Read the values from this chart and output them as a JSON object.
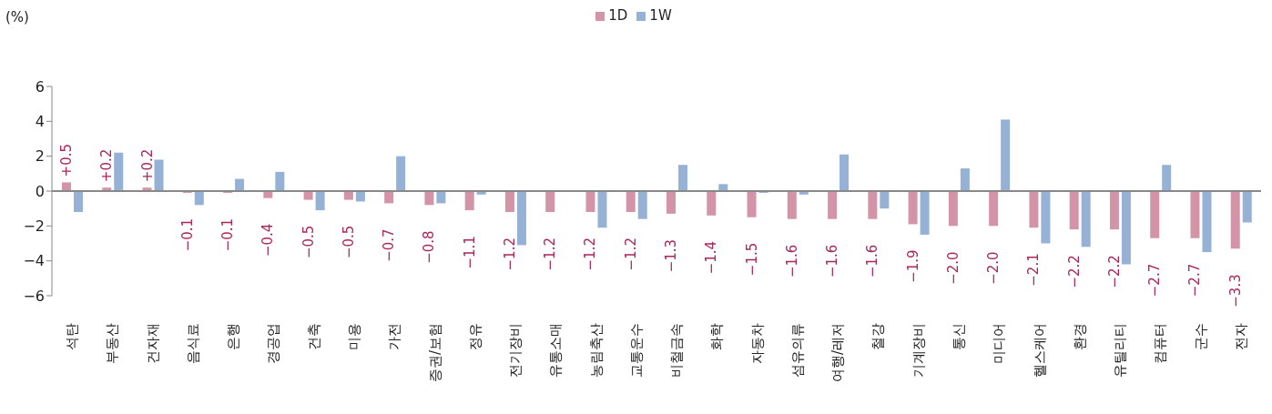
{
  "chart_data": {
    "type": "bar",
    "ylabel": "(%)",
    "categories": [
      "석탄",
      "부동산",
      "건자재",
      "음식료",
      "은행",
      "경공업",
      "건축",
      "미용",
      "가전",
      "증권/보험",
      "정유",
      "전기장비",
      "유통소매",
      "농림축산",
      "교통운수",
      "비철금속",
      "화학",
      "자동차",
      "섬유의류",
      "여행/레저",
      "철강",
      "기계장비",
      "통신",
      "미디어",
      "헬스케어",
      "환경",
      "유틸리티",
      "컴퓨터",
      "군수",
      "전자"
    ],
    "series": [
      {
        "name": "1D",
        "color": "#d494a8",
        "values": [
          0.5,
          0.2,
          0.2,
          -0.1,
          -0.1,
          -0.4,
          -0.5,
          -0.5,
          -0.7,
          -0.8,
          -1.1,
          -1.2,
          -1.2,
          -1.2,
          -1.2,
          -1.3,
          -1.4,
          -1.5,
          -1.6,
          -1.6,
          -1.6,
          -1.9,
          -2.0,
          -2.0,
          -2.1,
          -2.2,
          -2.2,
          -2.7,
          -2.7,
          -3.3
        ],
        "value_labels": [
          "+0.5",
          "+0.2",
          "+0.2",
          "−0.1",
          "−0.1",
          "−0.4",
          "−0.5",
          "−0.5",
          "−0.7",
          "−0.8",
          "−1.1",
          "−1.2",
          "−1.2",
          "−1.2",
          "−1.2",
          "−1.3",
          "−1.4",
          "−1.5",
          "−1.6",
          "−1.6",
          "−1.6",
          "−1.9",
          "−2.0",
          "−2.0",
          "−2.1",
          "−2.2",
          "−2.2",
          "−2.7",
          "−2.7",
          "−3.3"
        ]
      },
      {
        "name": "1W",
        "color": "#95b1d6",
        "values": [
          -1.2,
          2.2,
          1.8,
          -0.8,
          0.7,
          1.1,
          -1.1,
          -0.6,
          2.0,
          -0.7,
          -0.2,
          -3.1,
          0.0,
          -2.1,
          -1.6,
          1.5,
          0.4,
          -0.1,
          -0.2,
          2.1,
          -1.0,
          -2.5,
          1.3,
          4.1,
          -3.0,
          -3.2,
          -4.2,
          1.5,
          -3.5,
          -1.8
        ]
      }
    ],
    "ylim": [
      -6,
      6
    ],
    "yticks": [
      {
        "value": -6,
        "label": "−6"
      },
      {
        "value": -4,
        "label": "−4"
      },
      {
        "value": -2,
        "label": "−2"
      },
      0,
      2,
      4,
      6
    ],
    "ref_lines": [
      {
        "axis": "y",
        "value": 0,
        "color": "#888888"
      }
    ],
    "legend": "top"
  }
}
